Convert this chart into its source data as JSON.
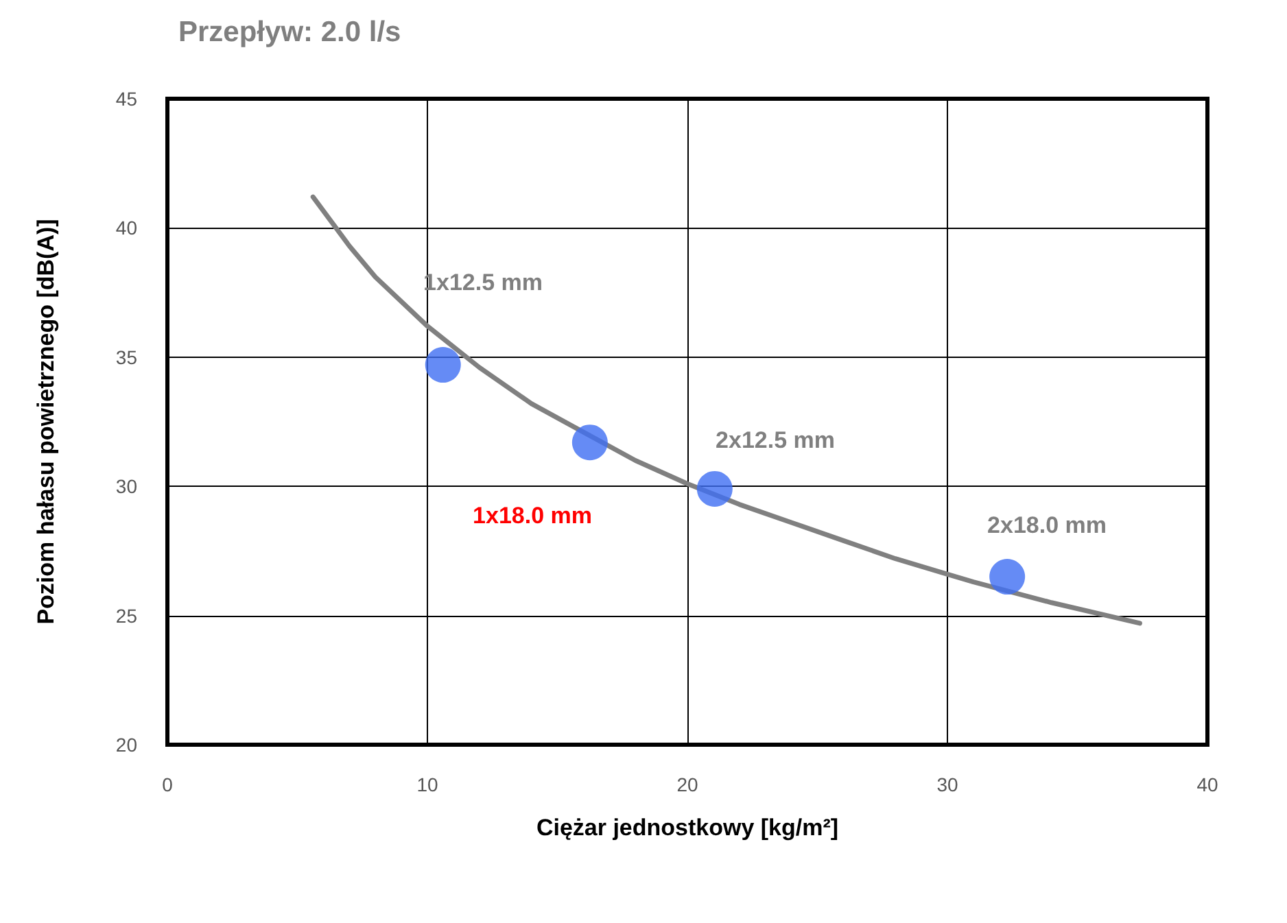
{
  "chart_data": {
    "type": "scatter",
    "title": "Przepływ: 2.0 l/s",
    "xlabel": "Ciężar jednostkowy [kg/m²]",
    "ylabel": "Poziom hałasu powietrznego [dB(A)]",
    "xlim": [
      0,
      40
    ],
    "ylim": [
      20,
      45
    ],
    "xticks": [
      0,
      10,
      20,
      30,
      40
    ],
    "yticks": [
      20,
      25,
      30,
      35,
      40,
      45
    ],
    "grid": true,
    "marker": "circle",
    "series": [
      {
        "color": "#3f6ef2",
        "x": [
          10.6,
          16.25,
          21.05,
          32.3
        ],
        "values": [
          34.7,
          31.7,
          29.9,
          26.5
        ]
      },
      {
        "type": "line",
        "color": "#808080",
        "marker": "none",
        "line_style": "solid",
        "x": [
          5.6,
          7,
          8,
          10,
          12,
          14,
          16,
          18,
          20,
          22,
          24,
          26,
          28,
          30,
          31,
          34,
          37.4
        ],
        "values": [
          41.2,
          39.3,
          38.1,
          36.2,
          34.6,
          33.2,
          32.1,
          31.0,
          30.1,
          29.3,
          28.6,
          27.9,
          27.2,
          26.6,
          26.3,
          25.5,
          24.7
        ]
      }
    ],
    "annotations": [
      "1x12.5 mm",
      "2x12.5 mm",
      "1x18.0 mm",
      "2x18.0 mm"
    ]
  }
}
